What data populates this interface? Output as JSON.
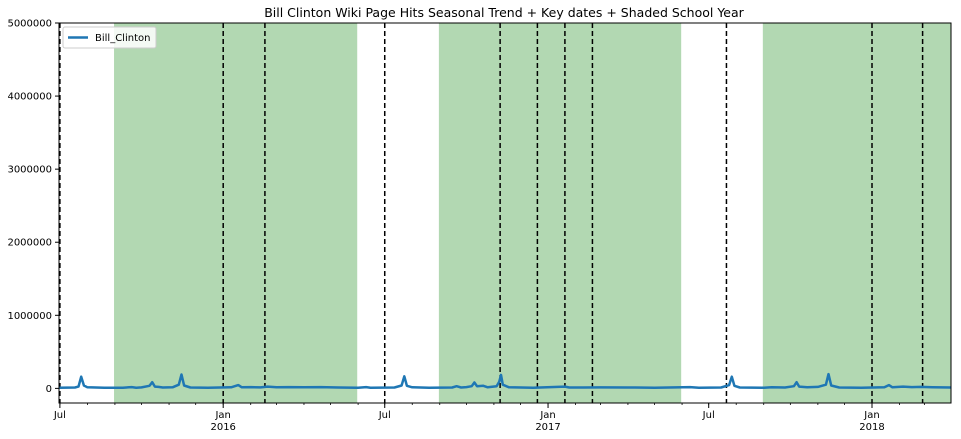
{
  "chart_data": {
    "type": "line",
    "title": "Bill Clinton Wiki Page Hits Seasonal Trend + Key dates + Shaded School Year",
    "xlabel": "",
    "ylabel": "",
    "xlim": [
      "2015-06-30",
      "2018-03-31"
    ],
    "ylim": [
      -200000,
      5000000
    ],
    "grid": false,
    "legend_position": "top-left",
    "y_ticks": [
      0,
      1000000,
      2000000,
      3000000,
      4000000,
      5000000
    ],
    "y_tick_labels": [
      "0",
      "1000000",
      "2000000",
      "3000000",
      "4000000",
      "5000000"
    ],
    "x_major_ticks": [
      {
        "date": "2015-07-01",
        "label": "Jul",
        "sublabel": ""
      },
      {
        "date": "2016-01-01",
        "label": "Jan",
        "sublabel": "2016"
      },
      {
        "date": "2016-07-01",
        "label": "Jul",
        "sublabel": ""
      },
      {
        "date": "2017-01-01",
        "label": "Jan",
        "sublabel": "2017"
      },
      {
        "date": "2017-07-01",
        "label": "Jul",
        "sublabel": ""
      },
      {
        "date": "2018-01-01",
        "label": "Jan",
        "sublabel": "2018"
      }
    ],
    "shaded_periods": [
      {
        "start": "2015-08-31",
        "end": "2016-05-31"
      },
      {
        "start": "2016-08-31",
        "end": "2017-05-31"
      },
      {
        "start": "2017-08-31",
        "end": "2018-03-31"
      }
    ],
    "key_dates": [
      "2015-07-01",
      "2016-01-01",
      "2016-02-17",
      "2016-07-01",
      "2016-11-08",
      "2016-12-20",
      "2017-01-20",
      "2017-02-20",
      "2017-07-21",
      "2018-01-01",
      "2018-02-27"
    ],
    "series": [
      {
        "name": "Bill_Clinton",
        "baseline": 10000,
        "points": [
          [
            "2015-06-30",
            10000
          ],
          [
            "2015-07-18",
            12000
          ],
          [
            "2015-07-22",
            25000
          ],
          [
            "2015-07-25",
            160000
          ],
          [
            "2015-07-28",
            40000
          ],
          [
            "2015-08-01",
            15000
          ],
          [
            "2015-08-20",
            9000
          ],
          [
            "2015-09-10",
            10000
          ],
          [
            "2015-09-20",
            18000
          ],
          [
            "2015-09-25",
            10000
          ],
          [
            "2015-10-01",
            14000
          ],
          [
            "2015-10-10",
            35000
          ],
          [
            "2015-10-13",
            85000
          ],
          [
            "2015-10-16",
            25000
          ],
          [
            "2015-10-20",
            20000
          ],
          [
            "2015-10-25",
            12000
          ],
          [
            "2015-11-05",
            15000
          ],
          [
            "2015-11-12",
            50000
          ],
          [
            "2015-11-15",
            190000
          ],
          [
            "2015-11-18",
            40000
          ],
          [
            "2015-11-25",
            12000
          ],
          [
            "2015-12-15",
            8000
          ],
          [
            "2016-01-10",
            15000
          ],
          [
            "2016-01-18",
            45000
          ],
          [
            "2016-01-22",
            15000
          ],
          [
            "2016-02-01",
            18000
          ],
          [
            "2016-02-12",
            14000
          ],
          [
            "2016-02-20",
            25000
          ],
          [
            "2016-03-01",
            15000
          ],
          [
            "2016-03-15",
            18000
          ],
          [
            "2016-04-01",
            16000
          ],
          [
            "2016-04-20",
            17000
          ],
          [
            "2016-05-10",
            12000
          ],
          [
            "2016-06-01",
            10000
          ],
          [
            "2016-06-10",
            18000
          ],
          [
            "2016-06-15",
            10000
          ],
          [
            "2016-07-12",
            12000
          ],
          [
            "2016-07-20",
            40000
          ],
          [
            "2016-07-23",
            165000
          ],
          [
            "2016-07-26",
            35000
          ],
          [
            "2016-08-01",
            15000
          ],
          [
            "2016-08-20",
            10000
          ],
          [
            "2016-09-15",
            12000
          ],
          [
            "2016-09-20",
            30000
          ],
          [
            "2016-09-25",
            12000
          ],
          [
            "2016-10-01",
            18000
          ],
          [
            "2016-10-07",
            30000
          ],
          [
            "2016-10-10",
            80000
          ],
          [
            "2016-10-13",
            30000
          ],
          [
            "2016-10-20",
            35000
          ],
          [
            "2016-10-25",
            15000
          ],
          [
            "2016-11-04",
            30000
          ],
          [
            "2016-11-07",
            90000
          ],
          [
            "2016-11-09",
            185000
          ],
          [
            "2016-11-11",
            50000
          ],
          [
            "2016-11-18",
            15000
          ],
          [
            "2016-12-15",
            10000
          ],
          [
            "2017-01-20",
            25000
          ],
          [
            "2017-01-25",
            12000
          ],
          [
            "2017-02-10",
            12000
          ],
          [
            "2017-03-01",
            14000
          ],
          [
            "2017-04-01",
            12000
          ],
          [
            "2017-05-01",
            10000
          ],
          [
            "2017-06-10",
            18000
          ],
          [
            "2017-06-20",
            10000
          ],
          [
            "2017-07-15",
            12000
          ],
          [
            "2017-07-24",
            45000
          ],
          [
            "2017-07-27",
            160000
          ],
          [
            "2017-07-30",
            35000
          ],
          [
            "2017-08-05",
            12000
          ],
          [
            "2017-09-01",
            10000
          ],
          [
            "2017-09-10",
            15000
          ],
          [
            "2017-09-25",
            12000
          ],
          [
            "2017-10-05",
            30000
          ],
          [
            "2017-10-08",
            85000
          ],
          [
            "2017-10-11",
            25000
          ],
          [
            "2017-10-20",
            15000
          ],
          [
            "2017-11-01",
            20000
          ],
          [
            "2017-11-10",
            50000
          ],
          [
            "2017-11-13",
            195000
          ],
          [
            "2017-11-16",
            40000
          ],
          [
            "2017-11-25",
            12000
          ],
          [
            "2017-12-20",
            8000
          ],
          [
            "2018-01-15",
            15000
          ],
          [
            "2018-01-20",
            45000
          ],
          [
            "2018-01-24",
            15000
          ],
          [
            "2018-02-05",
            25000
          ],
          [
            "2018-02-15",
            18000
          ],
          [
            "2018-02-25",
            20000
          ],
          [
            "2018-03-10",
            16000
          ],
          [
            "2018-03-31",
            12000
          ]
        ]
      }
    ]
  },
  "colors": {
    "line": "#1f77b4",
    "shade": "#b2d8b2",
    "key_date_line": "#000000",
    "axis": "#000000"
  }
}
